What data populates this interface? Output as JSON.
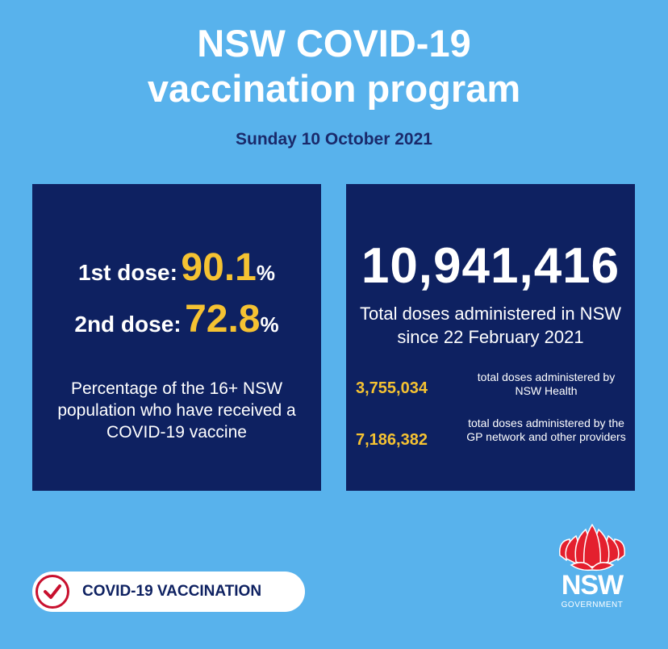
{
  "header": {
    "title_line1": "NSW COVID-19",
    "title_line2": "vaccination program",
    "date": "Sunday 10 October 2021"
  },
  "left_panel": {
    "dose1_label": "1st dose:",
    "dose1_value": "90.1",
    "dose1_unit": "%",
    "dose2_label": "2nd dose:",
    "dose2_value": "72.8",
    "dose2_unit": "%",
    "description": "Percentage of the 16+ NSW population who have received a COVID-19 vaccine"
  },
  "right_panel": {
    "total": "10,941,416",
    "total_description": "Total doses administered in NSW since 22 February 2021",
    "breakdown": [
      {
        "value": "3,755,034",
        "description": "total doses administered by NSW Health"
      },
      {
        "value": "7,186,382",
        "description": "total doses administered by the GP network and other providers"
      }
    ]
  },
  "badge": {
    "label": "COVID-19 VACCINATION",
    "icon": "check-circle-icon"
  },
  "logo": {
    "icon": "waratah-flower-icon",
    "wordmark": "NSW",
    "subtitle": "GOVERNMENT"
  },
  "colors": {
    "background": "#58b2ec",
    "panel": "#0e2161",
    "accent_yellow": "#f5c232",
    "brand_red": "#c8102e",
    "date_text": "#1a2a6b"
  }
}
